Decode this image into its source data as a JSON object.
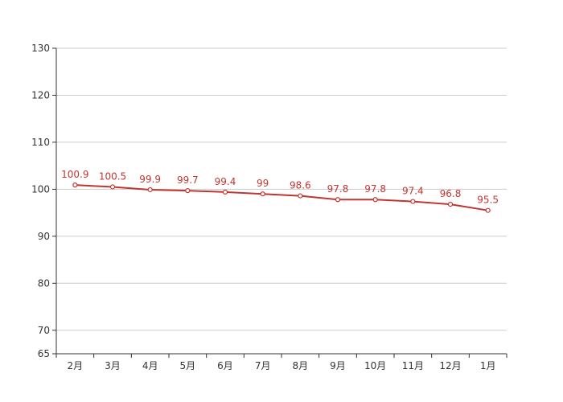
{
  "chart_data": {
    "type": "line",
    "title": "",
    "xlabel": "",
    "ylabel": "",
    "categories": [
      "2月",
      "3月",
      "4月",
      "5月",
      "6月",
      "7月",
      "8月",
      "9月",
      "10月",
      "11月",
      "12月",
      "1月"
    ],
    "series": [
      {
        "values": [
          100.9,
          100.5,
          99.9,
          99.7,
          99.4,
          99,
          98.6,
          97.8,
          97.8,
          97.4,
          96.8,
          95.5
        ],
        "labels": [
          "100.9",
          "100.5",
          "99.9",
          "99.7",
          "99.4",
          "99",
          "98.6",
          "97.8",
          "97.8",
          "97.4",
          "96.8",
          "95.5"
        ],
        "color": "#c23531"
      }
    ],
    "ylim": [
      65,
      130
    ],
    "yticks": [
      65,
      70,
      80,
      90,
      100,
      110,
      120,
      130
    ],
    "ytick_labels": [
      "65",
      "70",
      "80",
      "90",
      "100",
      "110",
      "120",
      "130"
    ],
    "grid": true,
    "grid_color": "#cccccc",
    "axis_color": "#333333",
    "marker": "hollow-circle",
    "legend": "none"
  }
}
